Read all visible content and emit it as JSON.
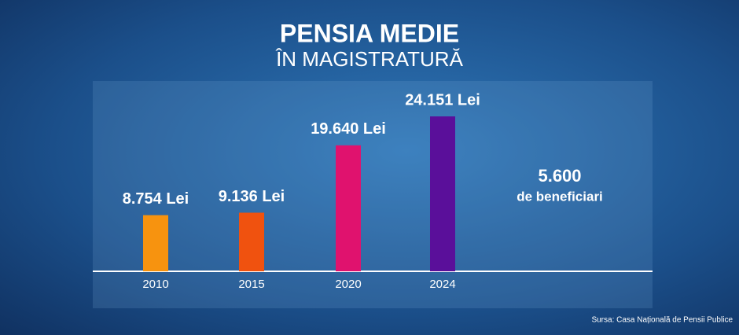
{
  "chart_data": {
    "type": "bar",
    "title": "PENSIA MEDIE",
    "subtitle": "ÎN MAGISTRATURĂ",
    "categories": [
      "2010",
      "2015",
      "2020",
      "2024"
    ],
    "values": [
      8754,
      9136,
      19640,
      24151
    ],
    "value_labels": [
      "8.754 Lei",
      "9.136 Lei",
      "19.640 Lei",
      "24.151 Lei"
    ],
    "colors": [
      "#f7930f",
      "#f0520f",
      "#e0126e",
      "#5a0f9a"
    ],
    "annotations": [
      "5.600",
      "de beneficiari"
    ],
    "source": "Sursa: Casa Națională de Pensii Publice"
  }
}
